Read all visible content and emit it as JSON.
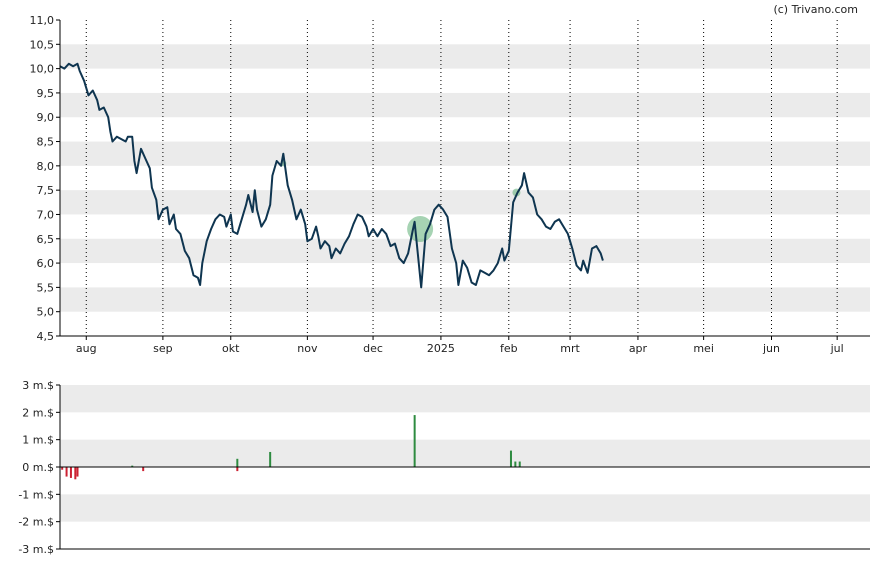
{
  "credit": "(c) Trivano.com",
  "colors": {
    "price_line": "#0f3550",
    "band": "#ebebeb",
    "axis": "#000000",
    "grid_dotted": "#000000",
    "volume_up": "#2e8b40",
    "volume_down": "#cc2233",
    "highlight_circle": "#5cae74"
  },
  "chart_data": [
    {
      "type": "line",
      "title": "",
      "y_ticks": [
        "11,0",
        "10,5",
        "10,0",
        "9,5",
        "9,0",
        "8,5",
        "8,0",
        "7,5",
        "7,0",
        "6,5",
        "6,0",
        "5,5",
        "5,0",
        "4,5"
      ],
      "ylim": [
        4.5,
        11.0
      ],
      "x_ticks": [
        "aug",
        "sep",
        "okt",
        "nov",
        "dec",
        "2025",
        "feb",
        "mrt",
        "apr",
        "mei",
        "jun",
        "jul"
      ],
      "x_tick_positions_day": [
        12,
        47,
        78,
        113,
        143,
        174,
        205,
        233,
        264,
        294,
        325,
        355
      ],
      "xlim_day": [
        0,
        370
      ],
      "grid": "horizontal bands, vertical dotted lines at month ticks",
      "series": [
        {
          "points": [
            [
              0,
              10.05
            ],
            [
              2,
              10.0
            ],
            [
              4,
              10.1
            ],
            [
              6,
              10.05
            ],
            [
              8,
              10.1
            ],
            [
              9,
              9.95
            ],
            [
              11,
              9.75
            ],
            [
              13,
              9.45
            ],
            [
              15,
              9.55
            ],
            [
              17,
              9.35
            ],
            [
              18,
              9.15
            ],
            [
              20,
              9.2
            ],
            [
              22,
              9.0
            ],
            [
              23,
              8.7
            ],
            [
              24,
              8.5
            ],
            [
              26,
              8.6
            ],
            [
              28,
              8.55
            ],
            [
              30,
              8.5
            ],
            [
              31,
              8.6
            ],
            [
              33,
              8.6
            ],
            [
              34,
              8.1
            ],
            [
              35,
              7.85
            ],
            [
              37,
              8.35
            ],
            [
              39,
              8.15
            ],
            [
              41,
              7.95
            ],
            [
              42,
              7.55
            ],
            [
              44,
              7.3
            ],
            [
              45,
              6.9
            ],
            [
              47,
              7.1
            ],
            [
              49,
              7.15
            ],
            [
              50,
              6.8
            ],
            [
              52,
              7.0
            ],
            [
              53,
              6.7
            ],
            [
              55,
              6.6
            ],
            [
              57,
              6.25
            ],
            [
              59,
              6.1
            ],
            [
              61,
              5.75
            ],
            [
              63,
              5.7
            ],
            [
              64,
              5.55
            ],
            [
              65,
              6.0
            ],
            [
              67,
              6.45
            ],
            [
              69,
              6.7
            ],
            [
              71,
              6.9
            ],
            [
              73,
              7.0
            ],
            [
              75,
              6.95
            ],
            [
              76,
              6.75
            ],
            [
              78,
              7.0
            ],
            [
              79,
              6.65
            ],
            [
              81,
              6.6
            ],
            [
              83,
              6.9
            ],
            [
              85,
              7.2
            ],
            [
              86,
              7.4
            ],
            [
              88,
              7.05
            ],
            [
              89,
              7.5
            ],
            [
              90,
              7.1
            ],
            [
              92,
              6.75
            ],
            [
              94,
              6.9
            ],
            [
              96,
              7.2
            ],
            [
              97,
              7.8
            ],
            [
              99,
              8.1
            ],
            [
              101,
              8.0
            ],
            [
              102,
              8.25
            ],
            [
              104,
              7.6
            ],
            [
              106,
              7.3
            ],
            [
              108,
              6.9
            ],
            [
              110,
              7.1
            ],
            [
              112,
              6.8
            ],
            [
              113,
              6.45
            ],
            [
              115,
              6.5
            ],
            [
              117,
              6.75
            ],
            [
              118,
              6.55
            ],
            [
              119,
              6.3
            ],
            [
              121,
              6.45
            ],
            [
              123,
              6.35
            ],
            [
              124,
              6.1
            ],
            [
              126,
              6.3
            ],
            [
              128,
              6.2
            ],
            [
              130,
              6.4
            ],
            [
              132,
              6.55
            ],
            [
              134,
              6.8
            ],
            [
              136,
              7.0
            ],
            [
              138,
              6.95
            ],
            [
              140,
              6.75
            ],
            [
              141,
              6.55
            ],
            [
              143,
              6.7
            ],
            [
              145,
              6.55
            ],
            [
              147,
              6.7
            ],
            [
              149,
              6.6
            ],
            [
              151,
              6.35
            ],
            [
              153,
              6.4
            ],
            [
              155,
              6.1
            ],
            [
              157,
              6.0
            ],
            [
              159,
              6.2
            ],
            [
              161,
              6.65
            ],
            [
              162,
              6.85
            ],
            [
              163,
              6.4
            ],
            [
              165,
              5.5
            ],
            [
              167,
              6.6
            ],
            [
              169,
              6.8
            ],
            [
              171,
              7.1
            ],
            [
              173,
              7.2
            ],
            [
              175,
              7.1
            ],
            [
              177,
              6.95
            ],
            [
              179,
              6.3
            ],
            [
              181,
              6.0
            ],
            [
              182,
              5.55
            ],
            [
              184,
              6.05
            ],
            [
              186,
              5.9
            ],
            [
              188,
              5.6
            ],
            [
              190,
              5.55
            ],
            [
              192,
              5.85
            ],
            [
              194,
              5.8
            ],
            [
              196,
              5.75
            ],
            [
              198,
              5.85
            ],
            [
              200,
              6.0
            ],
            [
              202,
              6.3
            ],
            [
              203,
              6.05
            ],
            [
              205,
              6.25
            ],
            [
              207,
              7.25
            ],
            [
              209,
              7.45
            ],
            [
              211,
              7.6
            ],
            [
              212,
              7.85
            ],
            [
              214,
              7.45
            ],
            [
              216,
              7.35
            ],
            [
              218,
              7.0
            ],
            [
              220,
              6.9
            ],
            [
              222,
              6.75
            ],
            [
              224,
              6.7
            ],
            [
              226,
              6.85
            ],
            [
              228,
              6.9
            ],
            [
              230,
              6.75
            ],
            [
              232,
              6.6
            ],
            [
              234,
              6.3
            ],
            [
              236,
              5.95
            ],
            [
              238,
              5.85
            ],
            [
              239,
              6.05
            ],
            [
              241,
              5.8
            ],
            [
              243,
              6.3
            ],
            [
              245,
              6.35
            ],
            [
              247,
              6.2
            ],
            [
              248,
              6.05
            ]
          ]
        }
      ]
    },
    {
      "type": "bar",
      "title": "",
      "y_ticks": [
        "3 m.$",
        "2 m.$",
        "1 m.$",
        "0 m.$",
        "-1 m.$",
        "-2 m.$",
        "-3 m.$"
      ],
      "ylim": [
        -3,
        3
      ],
      "x_axis": "same day axis as price chart",
      "series": [
        {
          "points": [
            [
              1,
              -0.1
            ],
            [
              3,
              -0.35
            ],
            [
              5,
              -0.4
            ],
            [
              7,
              -0.45
            ],
            [
              8,
              -0.35
            ],
            [
              33,
              0.05
            ],
            [
              38,
              -0.15
            ],
            [
              81,
              0.3
            ],
            [
              81,
              -0.15
            ],
            [
              96,
              0.55
            ],
            [
              162,
              1.9
            ],
            [
              206,
              0.6
            ],
            [
              208,
              0.2
            ],
            [
              210,
              0.2
            ]
          ]
        }
      ]
    }
  ]
}
